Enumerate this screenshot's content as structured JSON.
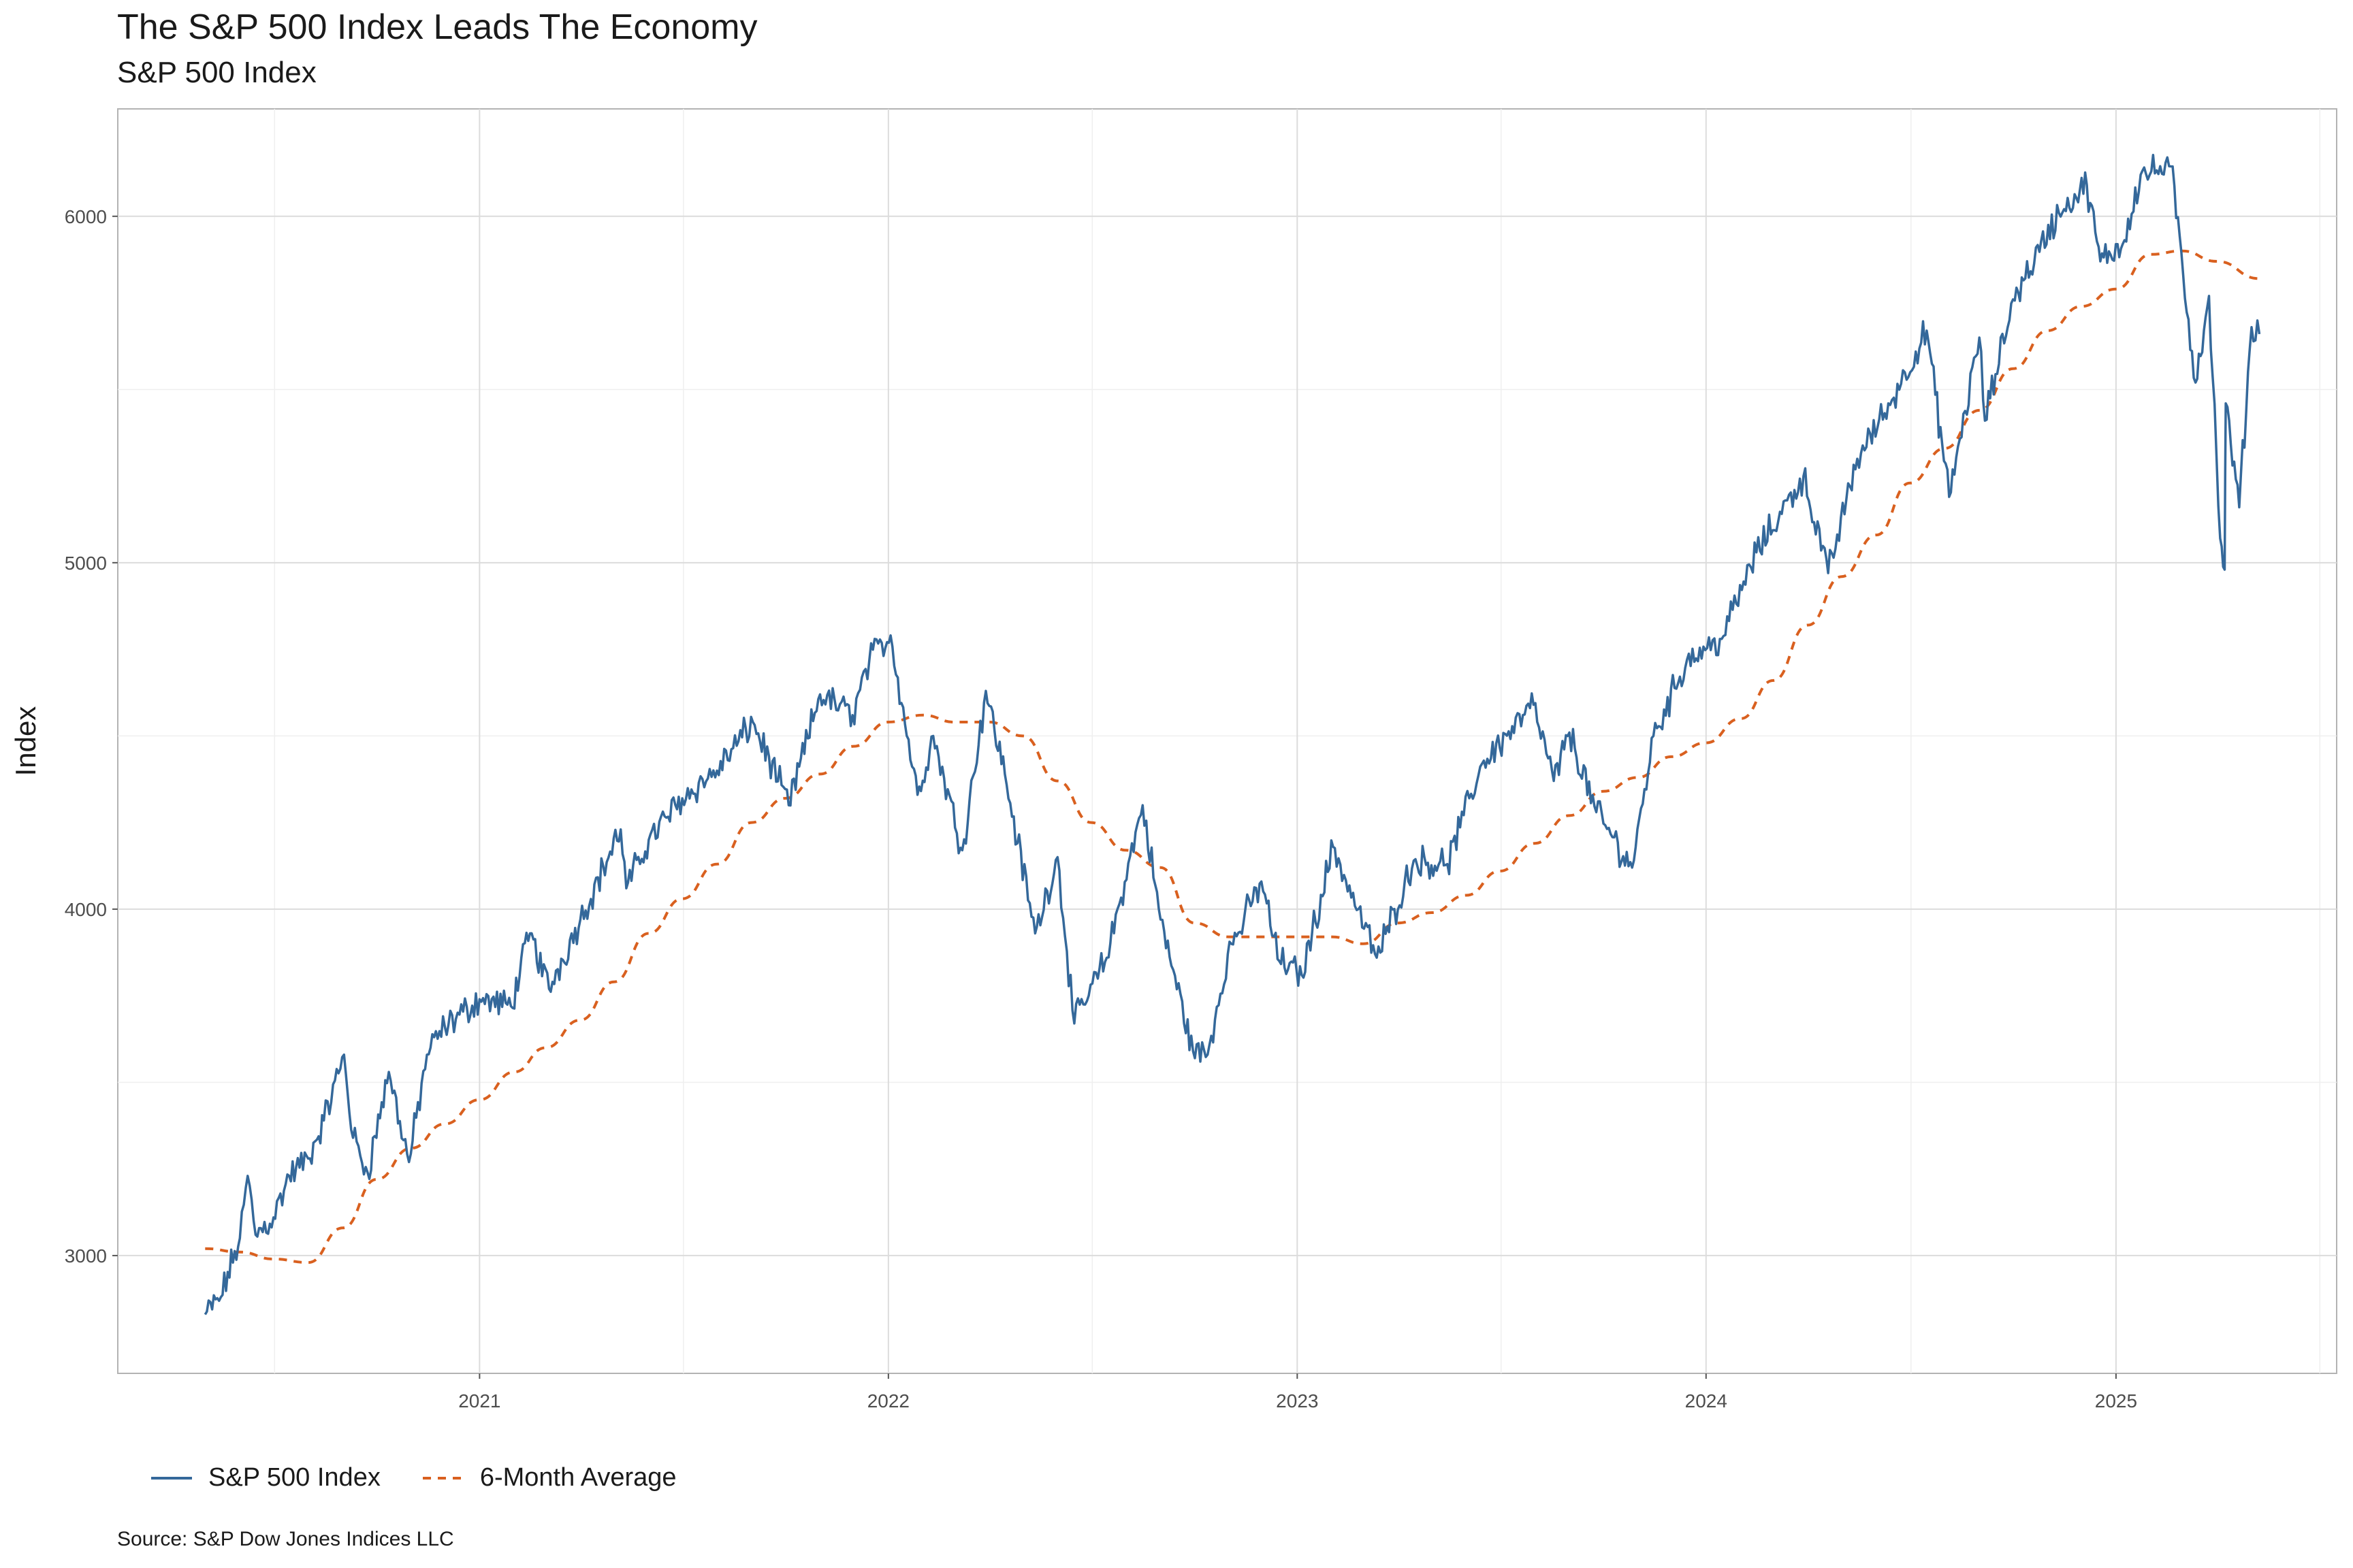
{
  "chart_data": {
    "type": "line",
    "title": "The S&P 500 Index Leads The Economy",
    "subtitle": "S&P 500 Index",
    "ylabel": "Index",
    "xlabel": "",
    "caption": "Source: S&P Dow Jones Indices LLC",
    "x_ticks": [
      "2021",
      "2022",
      "2023",
      "2024",
      "2025"
    ],
    "y_ticks": [
      "3000",
      "4000",
      "5000",
      "6000"
    ],
    "xlim": [
      "2020-02-13",
      "2025-07-17"
    ],
    "ylim": [
      2660,
      6310
    ],
    "grid": true,
    "legend_position": "bottom",
    "colors": {
      "sp500": "#34689a",
      "avg": "#d9601f"
    },
    "series": [
      {
        "name": "S&P 500 Index",
        "style": "solid",
        "points": [
          [
            "2020-05-01",
            2830
          ],
          [
            "2020-05-15",
            2880
          ],
          [
            "2020-06-01",
            3050
          ],
          [
            "2020-06-08",
            3230
          ],
          [
            "2020-06-15",
            3060
          ],
          [
            "2020-07-01",
            3110
          ],
          [
            "2020-07-15",
            3230
          ],
          [
            "2020-08-01",
            3280
          ],
          [
            "2020-08-15",
            3390
          ],
          [
            "2020-09-02",
            3580
          ],
          [
            "2020-09-10",
            3340
          ],
          [
            "2020-09-23",
            3240
          ],
          [
            "2020-10-12",
            3530
          ],
          [
            "2020-10-30",
            3270
          ],
          [
            "2020-11-15",
            3580
          ],
          [
            "2020-12-01",
            3660
          ],
          [
            "2021-01-01",
            3740
          ],
          [
            "2021-01-29",
            3720
          ],
          [
            "2021-02-15",
            3930
          ],
          [
            "2021-03-04",
            3770
          ],
          [
            "2021-04-01",
            3970
          ],
          [
            "2021-05-07",
            4230
          ],
          [
            "2021-05-12",
            4060
          ],
          [
            "2021-06-01",
            4200
          ],
          [
            "2021-07-01",
            4320
          ],
          [
            "2021-08-01",
            4400
          ],
          [
            "2021-09-02",
            4540
          ],
          [
            "2021-10-04",
            4300
          ],
          [
            "2021-11-01",
            4620
          ],
          [
            "2021-11-30",
            4560
          ],
          [
            "2021-12-15",
            4720
          ],
          [
            "2022-01-03",
            4790
          ],
          [
            "2022-01-27",
            4330
          ],
          [
            "2022-02-10",
            4500
          ],
          [
            "2022-03-08",
            4170
          ],
          [
            "2022-03-29",
            4630
          ],
          [
            "2022-04-15",
            4390
          ],
          [
            "2022-05-12",
            3930
          ],
          [
            "2022-06-01",
            4150
          ],
          [
            "2022-06-16",
            3670
          ],
          [
            "2022-07-15",
            3860
          ],
          [
            "2022-08-16",
            4300
          ],
          [
            "2022-09-01",
            3970
          ],
          [
            "2022-09-30",
            3590
          ],
          [
            "2022-10-13",
            3580
          ],
          [
            "2022-10-31",
            3870
          ],
          [
            "2022-11-30",
            4080
          ],
          [
            "2022-12-16",
            3850
          ],
          [
            "2023-01-05",
            3810
          ],
          [
            "2023-02-02",
            4180
          ],
          [
            "2023-03-13",
            3860
          ],
          [
            "2023-04-15",
            4140
          ],
          [
            "2023-05-15",
            4130
          ],
          [
            "2023-06-15",
            4420
          ],
          [
            "2023-07-31",
            4590
          ],
          [
            "2023-08-18",
            4370
          ],
          [
            "2023-09-01",
            4510
          ],
          [
            "2023-09-25",
            4280
          ],
          [
            "2023-10-27",
            4120
          ],
          [
            "2023-11-15",
            4500
          ],
          [
            "2023-12-15",
            4720
          ],
          [
            "2024-01-15",
            4780
          ],
          [
            "2024-02-15",
            5030
          ],
          [
            "2024-03-28",
            5250
          ],
          [
            "2024-04-19",
            4970
          ],
          [
            "2024-05-15",
            5300
          ],
          [
            "2024-06-15",
            5470
          ],
          [
            "2024-07-16",
            5670
          ],
          [
            "2024-08-05",
            5190
          ],
          [
            "2024-09-01",
            5650
          ],
          [
            "2024-09-06",
            5410
          ],
          [
            "2024-10-01",
            5760
          ],
          [
            "2024-11-11",
            6010
          ],
          [
            "2024-12-06",
            6090
          ],
          [
            "2024-12-18",
            5870
          ],
          [
            "2025-01-07",
            5920
          ],
          [
            "2025-01-23",
            6120
          ],
          [
            "2025-02-19",
            6144
          ],
          [
            "2025-03-13",
            5520
          ],
          [
            "2025-03-25",
            5770
          ],
          [
            "2025-04-04",
            5070
          ],
          [
            "2025-04-08",
            4980
          ],
          [
            "2025-04-09",
            5460
          ],
          [
            "2025-04-21",
            5160
          ],
          [
            "2025-05-02",
            5680
          ],
          [
            "2025-05-09",
            5660
          ]
        ]
      },
      {
        "name": "6-Month Average",
        "style": "dashed",
        "points": [
          [
            "2020-05-01",
            3020
          ],
          [
            "2020-06-01",
            3010
          ],
          [
            "2020-07-01",
            2990
          ],
          [
            "2020-08-01",
            2980
          ],
          [
            "2020-09-01",
            3080
          ],
          [
            "2020-10-01",
            3220
          ],
          [
            "2020-11-01",
            3310
          ],
          [
            "2020-12-01",
            3380
          ],
          [
            "2021-01-01",
            3450
          ],
          [
            "2021-02-01",
            3530
          ],
          [
            "2021-03-01",
            3600
          ],
          [
            "2021-04-01",
            3680
          ],
          [
            "2021-05-01",
            3790
          ],
          [
            "2021-06-01",
            3930
          ],
          [
            "2021-07-01",
            4030
          ],
          [
            "2021-08-01",
            4130
          ],
          [
            "2021-09-01",
            4250
          ],
          [
            "2021-10-01",
            4320
          ],
          [
            "2021-11-01",
            4390
          ],
          [
            "2021-12-01",
            4470
          ],
          [
            "2022-01-01",
            4540
          ],
          [
            "2022-02-01",
            4560
          ],
          [
            "2022-03-01",
            4540
          ],
          [
            "2022-04-01",
            4540
          ],
          [
            "2022-05-01",
            4500
          ],
          [
            "2022-06-01",
            4370
          ],
          [
            "2022-07-01",
            4250
          ],
          [
            "2022-08-01",
            4170
          ],
          [
            "2022-09-01",
            4120
          ],
          [
            "2022-10-01",
            3960
          ],
          [
            "2022-11-01",
            3920
          ],
          [
            "2022-12-01",
            3920
          ],
          [
            "2023-01-01",
            3920
          ],
          [
            "2023-02-01",
            3920
          ],
          [
            "2023-03-01",
            3900
          ],
          [
            "2023-04-01",
            3960
          ],
          [
            "2023-05-01",
            3990
          ],
          [
            "2023-06-01",
            4040
          ],
          [
            "2023-07-01",
            4110
          ],
          [
            "2023-08-01",
            4190
          ],
          [
            "2023-09-01",
            4270
          ],
          [
            "2023-10-01",
            4340
          ],
          [
            "2023-11-01",
            4380
          ],
          [
            "2023-12-01",
            4440
          ],
          [
            "2024-01-01",
            4480
          ],
          [
            "2024-02-01",
            4550
          ],
          [
            "2024-03-01",
            4660
          ],
          [
            "2024-04-01",
            4820
          ],
          [
            "2024-05-01",
            4960
          ],
          [
            "2024-06-01",
            5080
          ],
          [
            "2024-07-01",
            5230
          ],
          [
            "2024-08-01",
            5330
          ],
          [
            "2024-09-01",
            5440
          ],
          [
            "2024-10-01",
            5560
          ],
          [
            "2024-11-01",
            5670
          ],
          [
            "2024-12-01",
            5740
          ],
          [
            "2025-01-01",
            5790
          ],
          [
            "2025-02-01",
            5890
          ],
          [
            "2025-03-01",
            5900
          ],
          [
            "2025-04-01",
            5870
          ],
          [
            "2025-05-09",
            5820
          ]
        ]
      }
    ]
  }
}
